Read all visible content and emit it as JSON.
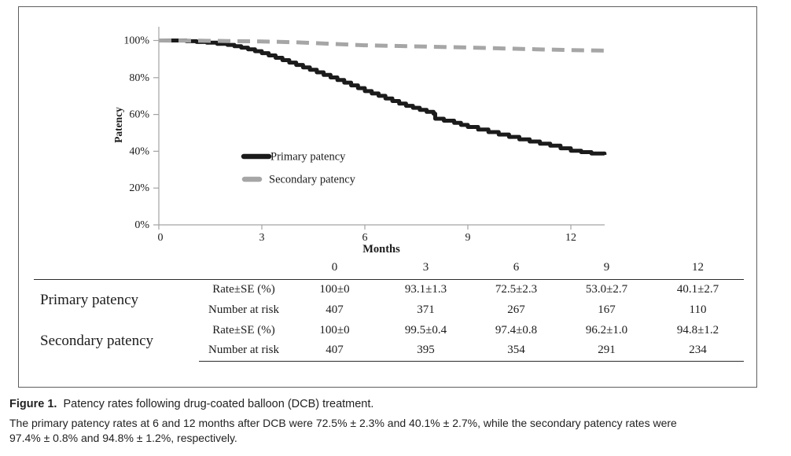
{
  "figure": {
    "caption_label": "Figure 1.",
    "caption_title": "Patency rates following drug-coated balloon (DCB) treatment.",
    "caption_body_lines": [
      "The primary patency rates at 6 and 12 months after DCB were 72.5% ± 2.3% and 40.1% ± 2.7%, while the secondary patency rates were",
      "97.4% ± 0.8% and 94.8% ± 1.2%, respectively."
    ]
  },
  "chart_data": {
    "type": "line",
    "title": "",
    "xlabel": "Months",
    "ylabel": "Patency",
    "xlim": [
      0,
      13
    ],
    "ylim": [
      0,
      100
    ],
    "grid": false,
    "legend_position": "inside-center-left",
    "xticks": [
      0,
      3,
      6,
      9,
      12
    ],
    "xtick_labels": [
      "0",
      "3",
      "6",
      "9",
      "12"
    ],
    "ytick_labels": [
      "0%",
      "20%",
      "40%",
      "60%",
      "80%",
      "100%"
    ],
    "series": [
      {
        "name": "Primary patency",
        "color": "#1b1b1b",
        "dash": "solid",
        "step": true,
        "points": [
          [
            0,
            100
          ],
          [
            0.5,
            100
          ],
          [
            0.8,
            99.6
          ],
          [
            1.1,
            99.2
          ],
          [
            1.4,
            98.8
          ],
          [
            1.7,
            98.2
          ],
          [
            2.0,
            97.6
          ],
          [
            2.2,
            96.9
          ],
          [
            2.4,
            96.1
          ],
          [
            2.6,
            95.2
          ],
          [
            2.8,
            94.2
          ],
          [
            3.0,
            93.1
          ],
          [
            3.2,
            91.9
          ],
          [
            3.4,
            90.6
          ],
          [
            3.6,
            89.3
          ],
          [
            3.8,
            88.0
          ],
          [
            4.0,
            86.7
          ],
          [
            4.2,
            85.4
          ],
          [
            4.4,
            84.1
          ],
          [
            4.6,
            82.7
          ],
          [
            4.8,
            81.3
          ],
          [
            5.0,
            79.9
          ],
          [
            5.2,
            78.5
          ],
          [
            5.4,
            77.1
          ],
          [
            5.6,
            75.6
          ],
          [
            5.8,
            74.1
          ],
          [
            6.0,
            72.5
          ],
          [
            6.2,
            71.2
          ],
          [
            6.4,
            69.9
          ],
          [
            6.6,
            68.5
          ],
          [
            6.8,
            67.1
          ],
          [
            7.0,
            65.7
          ],
          [
            7.2,
            64.5
          ],
          [
            7.4,
            63.4
          ],
          [
            7.6,
            62.3
          ],
          [
            7.8,
            61.2
          ],
          [
            8.0,
            60.2
          ],
          [
            8.05,
            57.5
          ],
          [
            8.3,
            56.4
          ],
          [
            8.6,
            55.2
          ],
          [
            8.8,
            54.1
          ],
          [
            9.0,
            53.0
          ],
          [
            9.3,
            51.6
          ],
          [
            9.6,
            50.2
          ],
          [
            9.9,
            48.9
          ],
          [
            10.2,
            47.6
          ],
          [
            10.5,
            46.3
          ],
          [
            10.8,
            45.1
          ],
          [
            11.1,
            43.9
          ],
          [
            11.4,
            42.8
          ],
          [
            11.7,
            41.4
          ],
          [
            12.0,
            40.1
          ],
          [
            12.3,
            39.3
          ],
          [
            12.6,
            38.6
          ],
          [
            12.98,
            37.8
          ]
        ]
      },
      {
        "name": "Secondary patency",
        "color": "#a6a6a6",
        "dash": "dashed",
        "step": false,
        "points": [
          [
            0,
            100
          ],
          [
            1,
            99.9
          ],
          [
            2,
            99.7
          ],
          [
            3,
            99.5
          ],
          [
            4,
            99.0
          ],
          [
            5,
            98.2
          ],
          [
            6,
            97.4
          ],
          [
            7,
            97.0
          ],
          [
            8,
            96.6
          ],
          [
            9,
            96.2
          ],
          [
            10,
            95.7
          ],
          [
            11,
            95.2
          ],
          [
            12,
            94.8
          ],
          [
            12.98,
            94.5
          ]
        ]
      }
    ]
  },
  "table": {
    "col_headers": [
      "",
      "",
      "0",
      "3",
      "6",
      "9",
      "12"
    ],
    "row_groups": [
      {
        "label": "Primary patency",
        "rows": [
          {
            "label": "Rate±SE (%)",
            "values": [
              "100±0",
              "93.1±1.3",
              "72.5±2.3",
              "53.0±2.7",
              "40.1±2.7"
            ]
          },
          {
            "label": "Number at risk",
            "values": [
              "407",
              "371",
              "267",
              "167",
              "110"
            ]
          }
        ]
      },
      {
        "label": "Secondary patency",
        "rows": [
          {
            "label": "Rate±SE (%)",
            "values": [
              "100±0",
              "99.5±0.4",
              "97.4±0.8",
              "96.2±1.0",
              "94.8±1.2"
            ]
          },
          {
            "label": "Number at risk",
            "values": [
              "407",
              "395",
              "354",
              "291",
              "234"
            ]
          }
        ]
      }
    ]
  },
  "colors": {
    "primary_series": "#1b1b1b",
    "secondary_series": "#a6a6a6",
    "axis": "#a3a3a3",
    "table_rule": "#2b2b2b",
    "panel_border": "#5f5f5f",
    "text": "#1c1c1c"
  }
}
